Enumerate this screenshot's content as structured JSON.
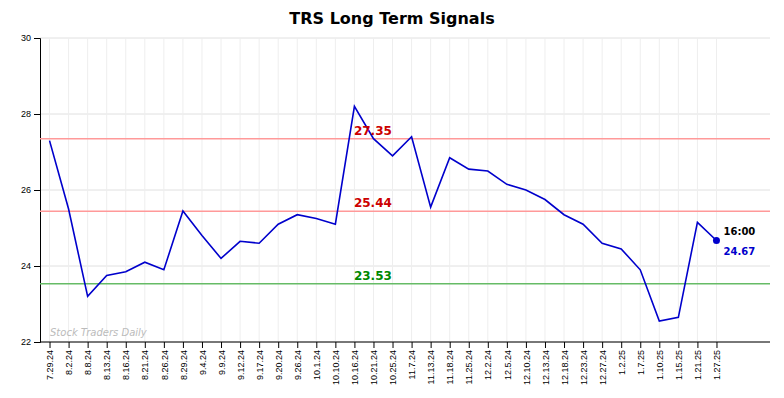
{
  "chart_data": {
    "type": "line",
    "title": "TRS Long Term Signals",
    "categories": [
      "7.29.24",
      "8.2.24",
      "8.8.24",
      "8.13.24",
      "8.16.24",
      "8.21.24",
      "8.26.24",
      "8.29.24",
      "9.4.24",
      "9.9.24",
      "9.12.24",
      "9.17.24",
      "9.20.24",
      "9.26.24",
      "10.1.24",
      "10.10.24",
      "10.16.24",
      "10.21.24",
      "10.25.24",
      "11.7.24",
      "11.13.24",
      "11.18.24",
      "11.25.24",
      "12.2.24",
      "12.5.24",
      "12.10.24",
      "12.13.24",
      "12.18.24",
      "12.23.24",
      "12.27.24",
      "1.2.25",
      "1.7.25",
      "1.10.25",
      "1.15.25",
      "1.21.25",
      "1.27.25"
    ],
    "values": [
      27.3,
      25.5,
      23.2,
      23.75,
      23.85,
      24.1,
      23.9,
      25.45,
      24.8,
      24.2,
      24.65,
      24.6,
      25.1,
      25.35,
      25.25,
      25.1,
      28.2,
      27.35,
      26.9,
      27.4,
      25.55,
      26.85,
      26.55,
      26.5,
      26.15,
      26.0,
      25.75,
      25.35,
      25.1,
      24.6,
      24.45,
      23.9,
      22.55,
      22.65,
      25.15,
      24.67
    ],
    "color": "#0000cc",
    "ylim": [
      22,
      30
    ],
    "yticks": [
      22,
      24,
      26,
      28,
      30
    ],
    "grid": true,
    "reference_lines": [
      {
        "value": 27.35,
        "color": "#ff9999",
        "label_color": "#cc0000"
      },
      {
        "value": 25.44,
        "color": "#ff9999",
        "label_color": "#cc0000"
      },
      {
        "value": 23.53,
        "color": "#66bb66",
        "label_color": "#008800"
      }
    ],
    "end_label": {
      "time": "16:00",
      "value": 24.67
    },
    "watermark": "Stock Traders Daily"
  }
}
